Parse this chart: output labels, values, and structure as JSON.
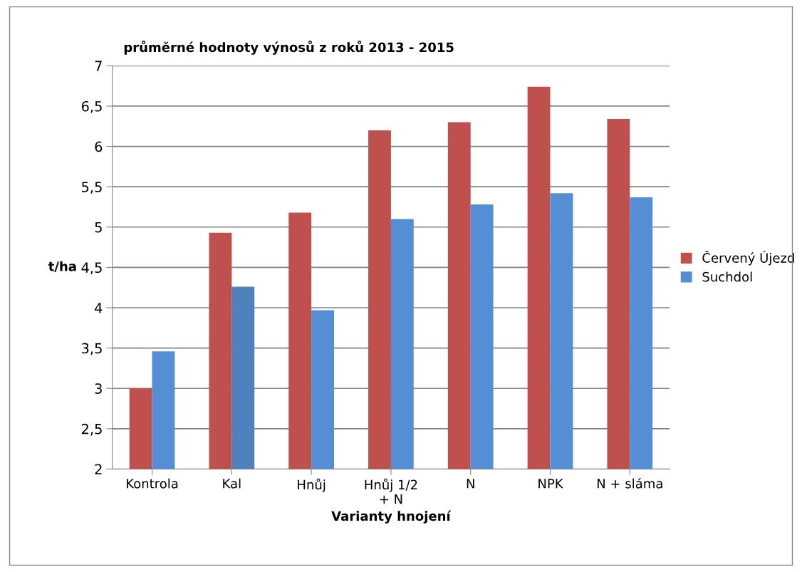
{
  "chart_data": {
    "type": "bar",
    "title": "průměrné hodnoty výnosů z roků 2013 - 2015",
    "xlabel": "Varianty hnojení",
    "ylabel": "t/ha",
    "categories": [
      "Kontrola",
      "Kal",
      "Hnůj",
      "Hnůj 1/2\n+ N",
      "N",
      "NPK",
      "N + sláma"
    ],
    "series": [
      {
        "name": "Červený Újezd",
        "color": "#c0504d",
        "values": [
          3.0,
          4.93,
          5.18,
          6.2,
          6.3,
          6.74,
          6.34
        ]
      },
      {
        "name": "Suchdol",
        "color": "#558ed5",
        "colors": [
          "#558ed5",
          "#4f81bd",
          "#558ed5",
          "#558ed5",
          "#558ed5",
          "#558ed5",
          "#558ed5"
        ],
        "values": [
          3.46,
          4.26,
          3.97,
          5.1,
          5.28,
          5.42,
          5.37
        ]
      }
    ],
    "ylim": [
      2,
      7
    ],
    "yticks": [
      {
        "value": 2,
        "label": "2"
      },
      {
        "value": 2.5,
        "label": "2,5"
      },
      {
        "value": 3,
        "label": "3"
      },
      {
        "value": 3.5,
        "label": "3,5"
      },
      {
        "value": 4,
        "label": "4"
      },
      {
        "value": 4.5,
        "label": "4,5"
      },
      {
        "value": 5,
        "label": "5"
      },
      {
        "value": 5.5,
        "label": "5,5"
      },
      {
        "value": 6,
        "label": "6"
      },
      {
        "value": 6.5,
        "label": "6,5"
      },
      {
        "value": 7,
        "label": "7"
      }
    ],
    "grid": "y",
    "legend": "right"
  }
}
